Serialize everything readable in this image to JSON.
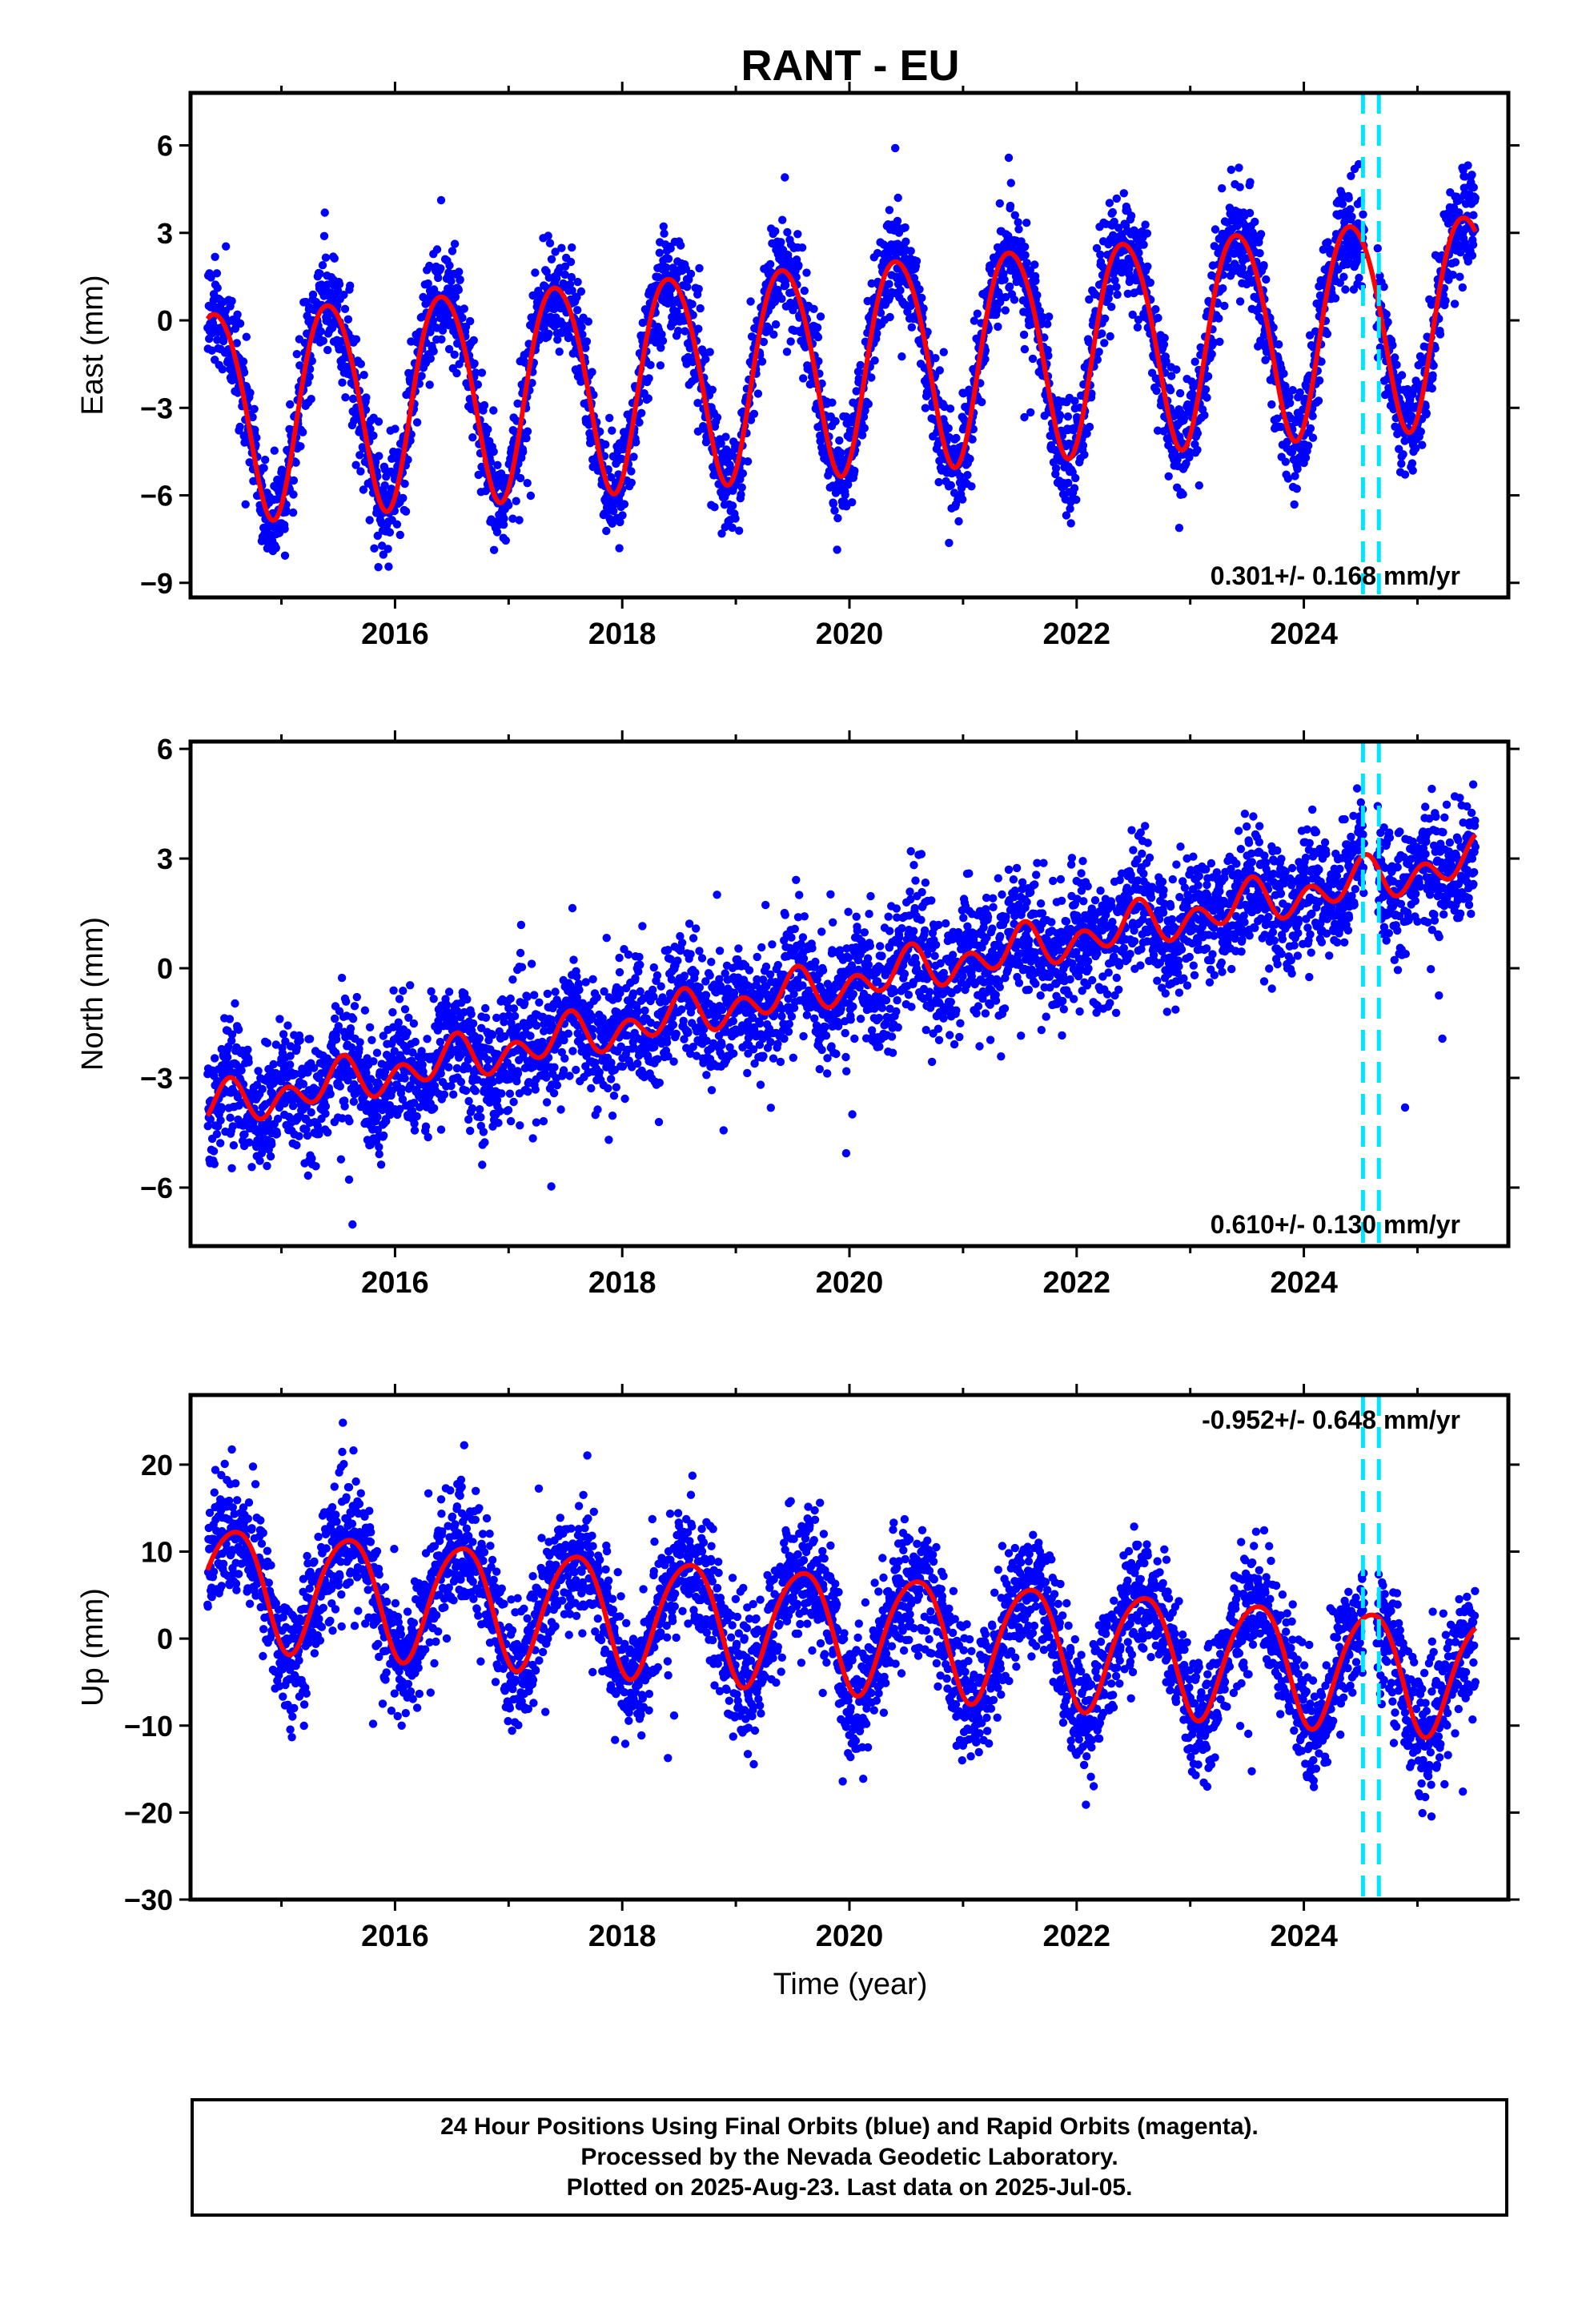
{
  "title": "RANT - EU",
  "colors": {
    "points": "#0000ff",
    "fit": "#ff0000",
    "marker": "#00e5ff",
    "frame": "#000000"
  },
  "x_axis": {
    "label": "Time (year)",
    "ticks": [
      2016,
      2018,
      2020,
      2022,
      2024
    ],
    "range": [
      2014.2,
      2025.8
    ]
  },
  "markers": [
    2024.52,
    2024.66
  ],
  "chart_data": [
    {
      "type": "scatter",
      "panel": "east",
      "ylabel": "East (mm)",
      "ylim": [
        -9.5,
        7.8
      ],
      "yticks": [
        -9,
        -6,
        -3,
        0,
        3,
        6
      ],
      "ytick_labels": [
        "−9",
        "−6",
        "−3",
        "0",
        "3",
        "6"
      ],
      "annotation": "0.301+/- 0.168 mm/yr",
      "annotation_position": "bottom-right",
      "x_start": 2014.35,
      "x_end": 2025.51,
      "trend": {
        "offset": -1.4,
        "rate": 0.301
      },
      "seasonal": {
        "annual_amplitude": 3.6,
        "annual_peak": 0.42,
        "semiannual_amplitude": 0.35,
        "semiannual_peak": 0.2
      },
      "scatter_sigma": 0.9
    },
    {
      "type": "scatter",
      "panel": "north",
      "ylabel": "North (mm)",
      "ylim": [
        -7.6,
        6.2
      ],
      "yticks": [
        -6,
        -3,
        0,
        3,
        6
      ],
      "ytick_labels": [
        "−6",
        "−3",
        "0",
        "3",
        "6"
      ],
      "annotation": "0.610+/- 0.130 mm/yr",
      "annotation_position": "bottom-right",
      "x_start": 2014.35,
      "x_end": 2025.51,
      "trend": {
        "offset": -0.4,
        "rate": 0.61
      },
      "seasonal": {
        "annual_amplitude": 0.3,
        "annual_peak": 0.5,
        "semiannual_amplitude": 0.45,
        "semiannual_peak": 0.05
      },
      "scatter_sigma": 0.85
    },
    {
      "type": "scatter",
      "panel": "up",
      "ylabel": "Up (mm)",
      "ylim": [
        -30,
        28
      ],
      "yticks": [
        -30,
        -20,
        -10,
        0,
        10,
        20
      ],
      "ytick_labels": [
        "−30",
        "−20",
        "−10",
        "0",
        "10",
        "20"
      ],
      "annotation": "-0.952+/- 0.648 mm/yr",
      "annotation_position": "top-right",
      "x_start": 2014.35,
      "x_end": 2025.51,
      "trend": {
        "offset": 1.0,
        "rate": -0.952
      },
      "seasonal": {
        "annual_amplitude": 6.8,
        "annual_peak": 0.58,
        "semiannual_amplitude": 0.8,
        "semiannual_peak": 0.3
      },
      "scatter_sigma": 3.6
    }
  ],
  "footer": {
    "line1": "24 Hour Positions Using Final Orbits (blue) and Rapid Orbits (magenta).",
    "line2": "Processed by the Nevada Geodetic Laboratory.",
    "line3": "Plotted on 2025-Aug-23. Last data on 2025-Jul-05."
  }
}
